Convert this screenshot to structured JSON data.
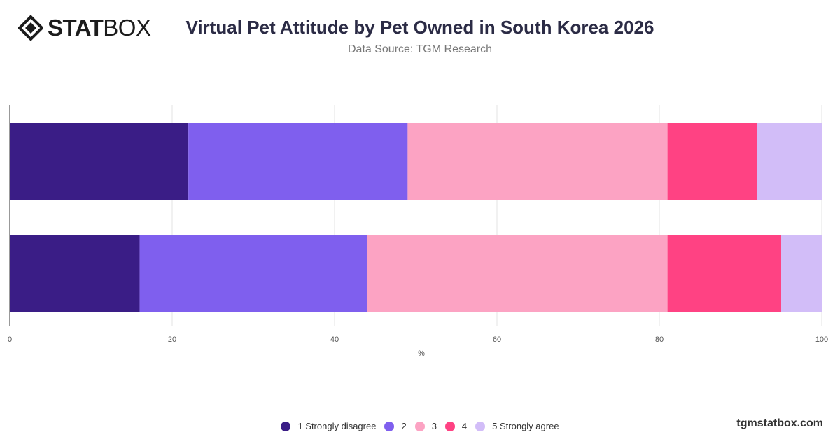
{
  "logo": {
    "part1": "STAT",
    "part2": "BOX"
  },
  "title": "Virtual Pet Attitude by Pet Owned in South Korea 2026",
  "subtitle": "Data Source: TGM Research",
  "brand": "tgmstatbox.com",
  "colors": {
    "s1": "#3a1d86",
    "s2": "#7f5fee",
    "s3": "#fca3c3",
    "s4": "#ff4283",
    "s5": "#d2bdf8"
  },
  "chart_data": {
    "type": "bar",
    "orientation": "horizontal",
    "stacked": true,
    "categories": [
      "",
      ""
    ],
    "xlabel": "%",
    "xlim": [
      0,
      100
    ],
    "xticks": [
      0,
      20,
      40,
      60,
      80,
      100
    ],
    "grid": true,
    "legend_position": "bottom",
    "series": [
      {
        "name": "1 Strongly disagree",
        "values": [
          22,
          16
        ]
      },
      {
        "name": "2",
        "values": [
          27,
          28
        ]
      },
      {
        "name": "3",
        "values": [
          32,
          37
        ]
      },
      {
        "name": "4",
        "values": [
          11,
          14
        ]
      },
      {
        "name": "5 Strongly agree",
        "values": [
          8,
          5
        ]
      }
    ]
  }
}
